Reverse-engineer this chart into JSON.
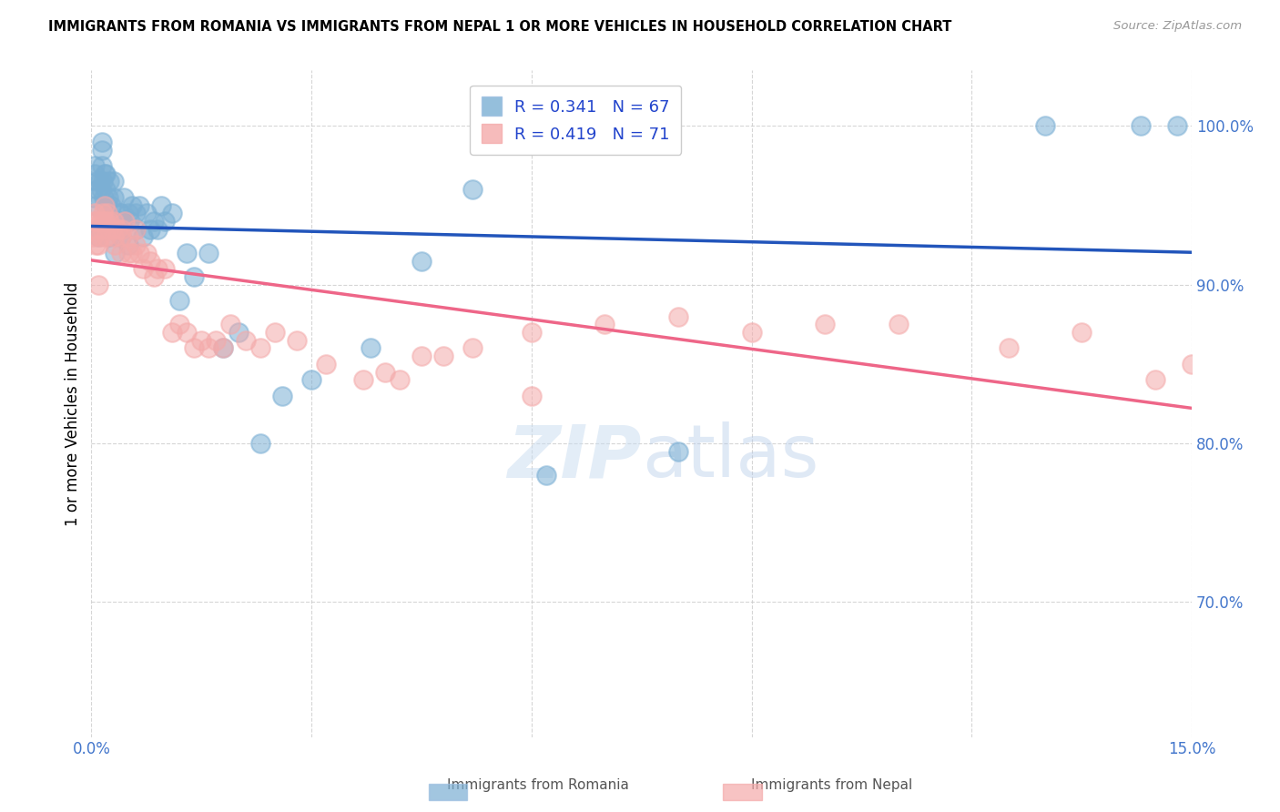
{
  "title": "IMMIGRANTS FROM ROMANIA VS IMMIGRANTS FROM NEPAL 1 OR MORE VEHICLES IN HOUSEHOLD CORRELATION CHART",
  "source": "Source: ZipAtlas.com",
  "ylabel": "1 or more Vehicles in Household",
  "xlim": [
    0.0,
    0.15
  ],
  "ylim": [
    0.615,
    1.035
  ],
  "xticks": [
    0.0,
    0.03,
    0.06,
    0.09,
    0.12,
    0.15
  ],
  "yticks": [
    0.7,
    0.8,
    0.9,
    1.0
  ],
  "ytick_labels": [
    "70.0%",
    "80.0%",
    "90.0%",
    "100.0%"
  ],
  "romania_color": "#7BAFD4",
  "nepal_color": "#F4AAAA",
  "romania_line_color": "#2255BB",
  "nepal_line_color": "#EE6688",
  "romania_R": 0.341,
  "romania_N": 67,
  "nepal_R": 0.419,
  "nepal_N": 71,
  "legend_label_romania": "Immigrants from Romania",
  "legend_label_nepal": "Immigrants from Nepal",
  "romania_x": [
    0.0002,
    0.0004,
    0.0005,
    0.0006,
    0.0007,
    0.0008,
    0.001,
    0.001,
    0.0012,
    0.0013,
    0.0014,
    0.0015,
    0.0015,
    0.0016,
    0.0017,
    0.0018,
    0.002,
    0.002,
    0.002,
    0.0022,
    0.0023,
    0.0024,
    0.0025,
    0.0026,
    0.0027,
    0.003,
    0.003,
    0.003,
    0.0032,
    0.0035,
    0.0038,
    0.004,
    0.004,
    0.0042,
    0.0044,
    0.005,
    0.005,
    0.0052,
    0.0055,
    0.006,
    0.006,
    0.0065,
    0.007,
    0.0075,
    0.008,
    0.0085,
    0.009,
    0.0095,
    0.01,
    0.011,
    0.012,
    0.013,
    0.014,
    0.016,
    0.018,
    0.02,
    0.023,
    0.026,
    0.03,
    0.038,
    0.045,
    0.052,
    0.062,
    0.08,
    0.13,
    0.143,
    0.148
  ],
  "romania_y": [
    0.955,
    0.97,
    0.975,
    0.95,
    0.965,
    0.96,
    0.935,
    0.93,
    0.965,
    0.96,
    0.975,
    0.985,
    0.99,
    0.965,
    0.955,
    0.97,
    0.95,
    0.96,
    0.97,
    0.945,
    0.955,
    0.965,
    0.93,
    0.94,
    0.95,
    0.94,
    0.955,
    0.965,
    0.92,
    0.935,
    0.945,
    0.93,
    0.945,
    0.94,
    0.955,
    0.925,
    0.945,
    0.94,
    0.95,
    0.935,
    0.945,
    0.95,
    0.93,
    0.945,
    0.935,
    0.94,
    0.935,
    0.95,
    0.94,
    0.945,
    0.89,
    0.92,
    0.905,
    0.92,
    0.86,
    0.87,
    0.8,
    0.83,
    0.84,
    0.86,
    0.915,
    0.96,
    0.78,
    0.795,
    1.0,
    1.0,
    1.0
  ],
  "nepal_x": [
    0.0002,
    0.0003,
    0.0005,
    0.0006,
    0.0007,
    0.0008,
    0.001,
    0.001,
    0.0012,
    0.0013,
    0.0015,
    0.0016,
    0.0017,
    0.0018,
    0.002,
    0.002,
    0.0022,
    0.0024,
    0.0025,
    0.0028,
    0.003,
    0.003,
    0.0032,
    0.0035,
    0.004,
    0.004,
    0.0042,
    0.0045,
    0.005,
    0.005,
    0.0055,
    0.006,
    0.006,
    0.0065,
    0.007,
    0.0075,
    0.008,
    0.0085,
    0.009,
    0.01,
    0.011,
    0.012,
    0.013,
    0.014,
    0.015,
    0.016,
    0.017,
    0.018,
    0.019,
    0.021,
    0.023,
    0.025,
    0.028,
    0.032,
    0.037,
    0.042,
    0.048,
    0.06,
    0.04,
    0.045,
    0.052,
    0.06,
    0.07,
    0.08,
    0.09,
    0.1,
    0.11,
    0.125,
    0.135,
    0.145,
    0.15
  ],
  "nepal_y": [
    0.93,
    0.94,
    0.945,
    0.925,
    0.94,
    0.935,
    0.9,
    0.925,
    0.93,
    0.94,
    0.935,
    0.945,
    0.94,
    0.95,
    0.93,
    0.94,
    0.945,
    0.935,
    0.94,
    0.935,
    0.93,
    0.94,
    0.925,
    0.935,
    0.92,
    0.93,
    0.935,
    0.94,
    0.92,
    0.93,
    0.92,
    0.925,
    0.935,
    0.92,
    0.91,
    0.92,
    0.915,
    0.905,
    0.91,
    0.91,
    0.87,
    0.875,
    0.87,
    0.86,
    0.865,
    0.86,
    0.865,
    0.86,
    0.875,
    0.865,
    0.86,
    0.87,
    0.865,
    0.85,
    0.84,
    0.84,
    0.855,
    0.83,
    0.845,
    0.855,
    0.86,
    0.87,
    0.875,
    0.88,
    0.87,
    0.875,
    0.875,
    0.86,
    0.87,
    0.84,
    0.85
  ]
}
